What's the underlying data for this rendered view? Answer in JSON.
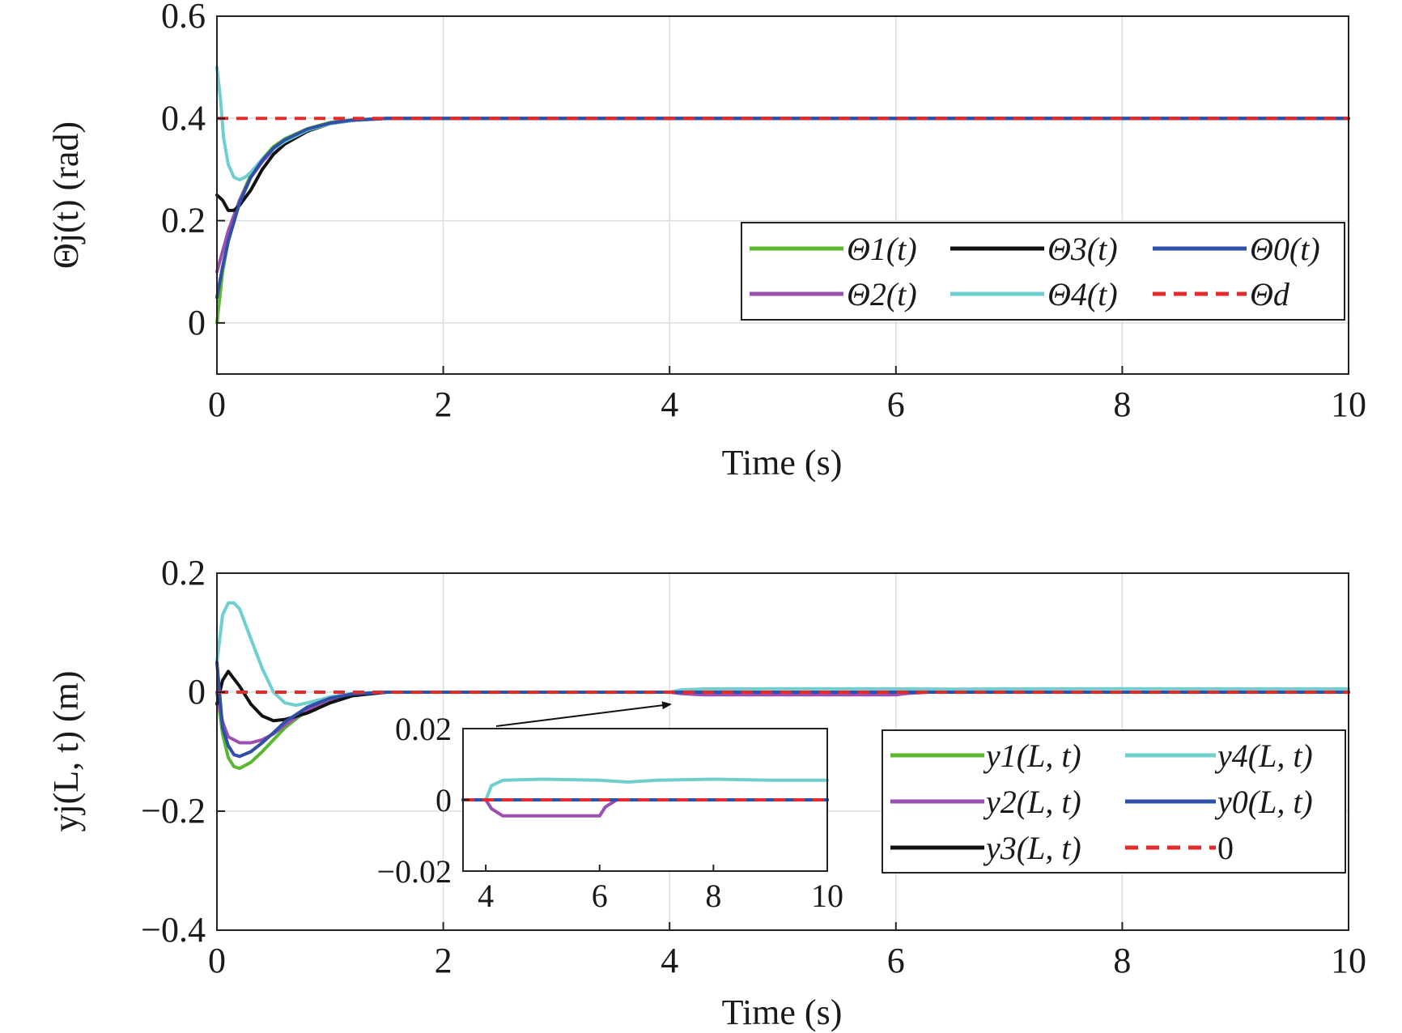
{
  "chart_data": [
    {
      "type": "line",
      "xlabel": "Time (s)",
      "ylabel": "Θj(t) (rad)",
      "xlim": [
        0,
        10
      ],
      "ylim": [
        -0.1,
        0.6
      ],
      "xticks": [
        "0",
        "2",
        "4",
        "6",
        "8",
        "10"
      ],
      "yticks": [
        "0",
        "0.2",
        "0.4",
        "0.6"
      ],
      "ytick_values": [
        0,
        0.2,
        0.4,
        0.6
      ],
      "xtick_values": [
        0,
        2,
        4,
        6,
        8,
        10
      ],
      "grid": true,
      "legend_position": "lower-right",
      "series": [
        {
          "name": "Θ1(t)",
          "color": "#5ab82e",
          "style": "solid",
          "x": [
            0,
            0.05,
            0.1,
            0.2,
            0.3,
            0.4,
            0.5,
            0.6,
            0.8,
            1.0,
            1.2,
            1.5,
            2,
            10
          ],
          "y": [
            0.0,
            0.1,
            0.16,
            0.24,
            0.29,
            0.32,
            0.345,
            0.36,
            0.38,
            0.392,
            0.397,
            0.4,
            0.4,
            0.4
          ]
        },
        {
          "name": "Θ2(t)",
          "color": "#9b4fb0",
          "style": "solid",
          "x": [
            0,
            0.05,
            0.1,
            0.2,
            0.3,
            0.4,
            0.5,
            0.6,
            0.8,
            1.0,
            1.2,
            1.5,
            2,
            10
          ],
          "y": [
            0.1,
            0.14,
            0.18,
            0.24,
            0.285,
            0.315,
            0.34,
            0.357,
            0.378,
            0.39,
            0.396,
            0.4,
            0.4,
            0.4
          ]
        },
        {
          "name": "Θ3(t)",
          "color": "#111111",
          "style": "solid",
          "x": [
            0,
            0.05,
            0.1,
            0.15,
            0.2,
            0.3,
            0.4,
            0.5,
            0.6,
            0.8,
            1.0,
            1.2,
            1.5,
            2,
            10
          ],
          "y": [
            0.25,
            0.24,
            0.22,
            0.22,
            0.23,
            0.26,
            0.3,
            0.33,
            0.35,
            0.375,
            0.39,
            0.396,
            0.4,
            0.4,
            0.4
          ]
        },
        {
          "name": "Θ4(t)",
          "color": "#6fcfcf",
          "style": "solid",
          "x": [
            0,
            0.03,
            0.06,
            0.1,
            0.15,
            0.2,
            0.25,
            0.3,
            0.4,
            0.5,
            0.6,
            0.8,
            1.0,
            1.2,
            1.5,
            2,
            10
          ],
          "y": [
            0.5,
            0.44,
            0.36,
            0.31,
            0.285,
            0.28,
            0.285,
            0.295,
            0.32,
            0.34,
            0.355,
            0.377,
            0.39,
            0.396,
            0.4,
            0.4,
            0.4
          ]
        },
        {
          "name": "Θ0(t)",
          "color": "#2f4fa8",
          "style": "solid",
          "x": [
            0,
            0.05,
            0.1,
            0.2,
            0.3,
            0.4,
            0.5,
            0.6,
            0.8,
            1.0,
            1.2,
            1.5,
            2,
            10
          ],
          "y": [
            0.05,
            0.11,
            0.16,
            0.235,
            0.285,
            0.318,
            0.342,
            0.358,
            0.379,
            0.391,
            0.397,
            0.4,
            0.4,
            0.4
          ]
        },
        {
          "name": "Θd",
          "color": "#e32b2b",
          "style": "dashed",
          "x": [
            0,
            10
          ],
          "y": [
            0.4,
            0.4
          ]
        }
      ]
    },
    {
      "type": "line",
      "xlabel": "Time (s)",
      "ylabel": "yj(L, t) (m)",
      "xlim": [
        0,
        10
      ],
      "ylim": [
        -0.4,
        0.2
      ],
      "xticks": [
        "0",
        "2",
        "4",
        "6",
        "8",
        "10"
      ],
      "yticks": [
        "−0.4",
        "−0.2",
        "0",
        "0.2"
      ],
      "ytick_values": [
        -0.4,
        -0.2,
        0,
        0.2
      ],
      "xtick_values": [
        0,
        2,
        4,
        6,
        8,
        10
      ],
      "grid": true,
      "legend_position": "lower-right",
      "series": [
        {
          "name": "y1(L, t)",
          "color": "#5ab82e",
          "style": "solid",
          "x": [
            0,
            0.05,
            0.1,
            0.15,
            0.2,
            0.3,
            0.4,
            0.5,
            0.6,
            0.8,
            1.0,
            1.2,
            1.5,
            2,
            4,
            6,
            10
          ],
          "y": [
            0,
            -0.07,
            -0.11,
            -0.125,
            -0.128,
            -0.118,
            -0.1,
            -0.08,
            -0.06,
            -0.03,
            -0.012,
            -0.004,
            0,
            0,
            0,
            0,
            0
          ]
        },
        {
          "name": "y2(L, t)",
          "color": "#9b4fb0",
          "style": "solid",
          "x": [
            0,
            0.05,
            0.1,
            0.2,
            0.3,
            0.4,
            0.5,
            0.6,
            0.8,
            1.0,
            1.2,
            1.5,
            2,
            4,
            4.1,
            4.3,
            6.0,
            6.1,
            6.3,
            10
          ],
          "y": [
            0,
            -0.05,
            -0.075,
            -0.085,
            -0.085,
            -0.08,
            -0.07,
            -0.055,
            -0.03,
            -0.012,
            -0.004,
            0,
            0,
            0,
            -0.0025,
            -0.0045,
            -0.0045,
            -0.002,
            0,
            0
          ]
        },
        {
          "name": "y3(L, t)",
          "color": "#111111",
          "style": "solid",
          "x": [
            0,
            0.05,
            0.1,
            0.2,
            0.3,
            0.4,
            0.5,
            0.6,
            0.8,
            1.0,
            1.2,
            1.5,
            2,
            4,
            6,
            10
          ],
          "y": [
            -0.02,
            0.02,
            0.035,
            0.01,
            -0.02,
            -0.04,
            -0.048,
            -0.046,
            -0.035,
            -0.018,
            -0.006,
            0,
            0,
            0,
            0,
            0
          ]
        },
        {
          "name": "y4(L, t)",
          "color": "#6fcfcf",
          "style": "solid",
          "x": [
            0,
            0.05,
            0.1,
            0.15,
            0.2,
            0.3,
            0.4,
            0.5,
            0.6,
            0.7,
            0.8,
            1.0,
            1.2,
            1.5,
            2,
            4,
            4.1,
            4.3,
            5,
            6,
            6.5,
            7,
            8,
            9,
            10
          ],
          "y": [
            0.05,
            0.13,
            0.15,
            0.15,
            0.14,
            0.09,
            0.04,
            0.0,
            -0.018,
            -0.022,
            -0.018,
            -0.008,
            -0.002,
            0,
            0,
            0,
            0.004,
            0.0055,
            0.0058,
            0.0055,
            0.005,
            0.0055,
            0.0058,
            0.0055,
            0.0055
          ]
        },
        {
          "name": "y0(L, t)",
          "color": "#2f4fa8",
          "style": "solid",
          "x": [
            0,
            0.05,
            0.1,
            0.15,
            0.2,
            0.3,
            0.4,
            0.5,
            0.6,
            0.8,
            1.0,
            1.2,
            1.5,
            2,
            4,
            6,
            10
          ],
          "y": [
            0.05,
            -0.06,
            -0.09,
            -0.105,
            -0.108,
            -0.1,
            -0.085,
            -0.068,
            -0.05,
            -0.025,
            -0.01,
            -0.003,
            0,
            0,
            0,
            0,
            0
          ]
        },
        {
          "name": "0",
          "color": "#e32b2b",
          "style": "dashed",
          "x": [
            0,
            10
          ],
          "y": [
            0,
            0
          ]
        }
      ],
      "inset": {
        "xlim": [
          3.6,
          10
        ],
        "ylim": [
          -0.02,
          0.02
        ],
        "xticks": [
          "4",
          "6",
          "8",
          "10"
        ],
        "xtick_values": [
          4,
          6,
          8,
          10
        ],
        "yticks": [
          "−0.02",
          "0",
          "0.02"
        ],
        "ytick_values": [
          -0.02,
          0,
          0.02
        ]
      }
    }
  ]
}
